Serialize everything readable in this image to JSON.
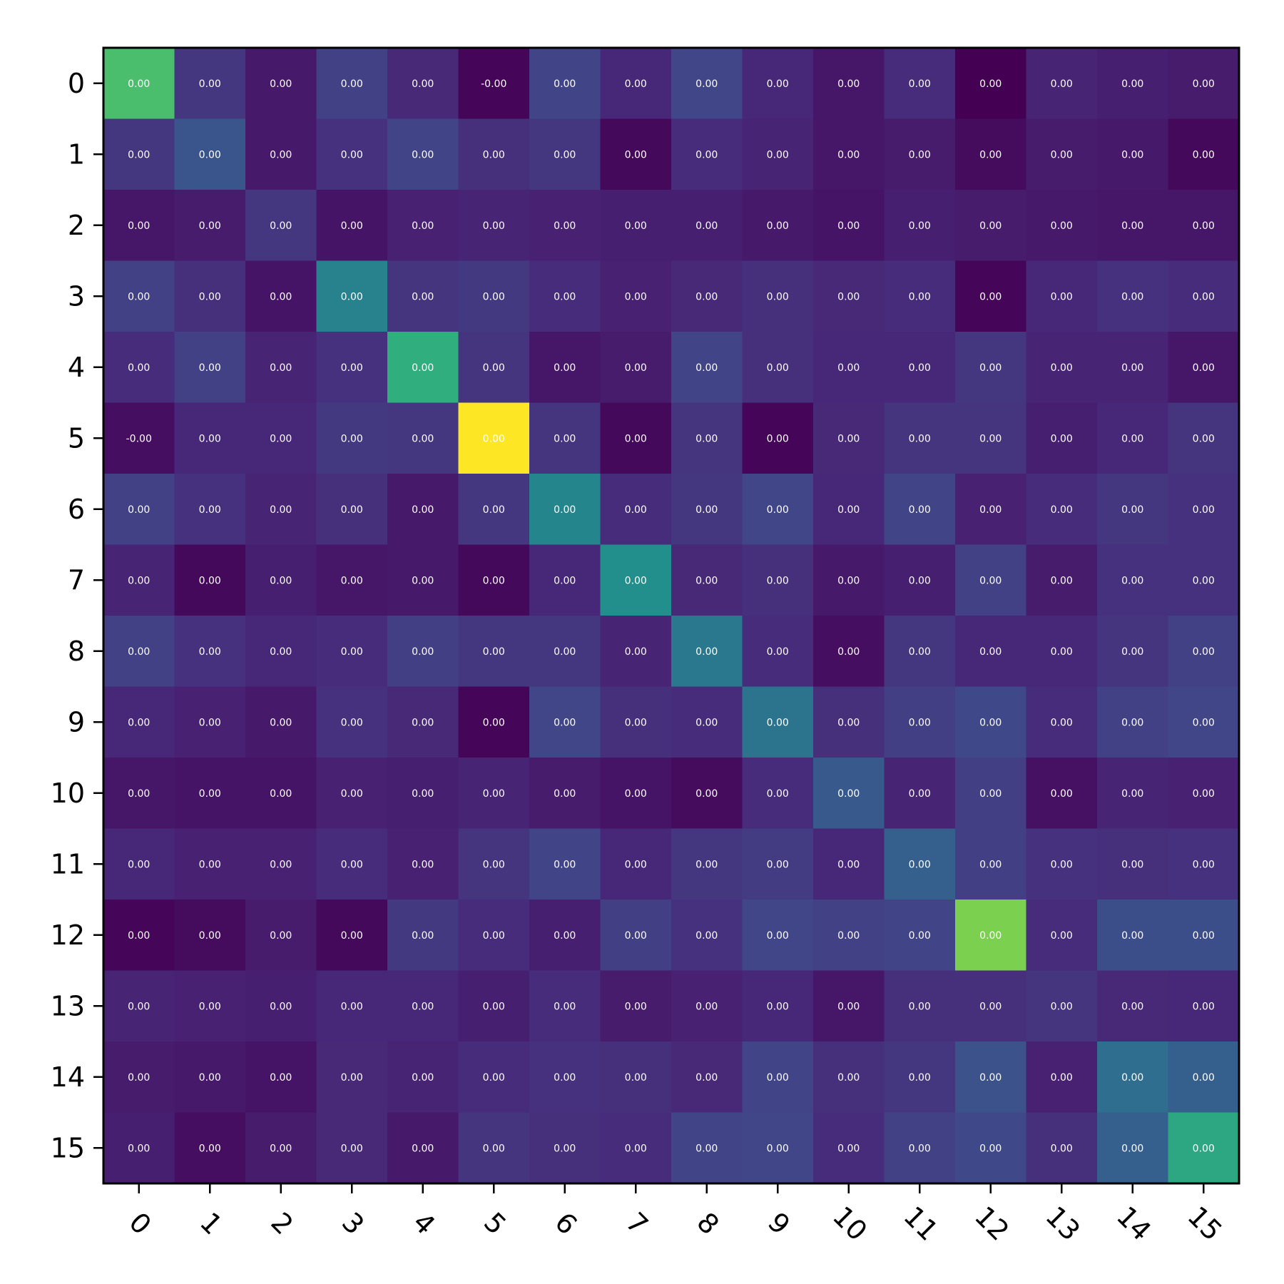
{
  "chart_data": {
    "type": "heatmap",
    "title": "",
    "xlabel": "",
    "ylabel": "",
    "colormap": "viridis",
    "x_categories": [
      "0",
      "1",
      "2",
      "3",
      "4",
      "5",
      "6",
      "7",
      "8",
      "9",
      "10",
      "11",
      "12",
      "13",
      "14",
      "15"
    ],
    "y_categories": [
      "0",
      "1",
      "2",
      "3",
      "4",
      "5",
      "6",
      "7",
      "8",
      "9",
      "10",
      "11",
      "12",
      "13",
      "14",
      "15"
    ],
    "x_tick_rotation_deg": 45,
    "grid": false,
    "legend": "none",
    "value_range": [
      0.0,
      1.0
    ],
    "intensity": [
      [
        0.78,
        0.2,
        0.09,
        0.24,
        0.15,
        0.02,
        0.25,
        0.14,
        0.26,
        0.14,
        0.08,
        0.16,
        0.0,
        0.13,
        0.11,
        0.1
      ],
      [
        0.2,
        0.33,
        0.09,
        0.18,
        0.25,
        0.17,
        0.2,
        0.03,
        0.16,
        0.13,
        0.08,
        0.1,
        0.04,
        0.1,
        0.09,
        0.03
      ],
      [
        0.08,
        0.1,
        0.2,
        0.07,
        0.12,
        0.13,
        0.12,
        0.11,
        0.11,
        0.09,
        0.07,
        0.11,
        0.1,
        0.09,
        0.08,
        0.08
      ],
      [
        0.24,
        0.17,
        0.07,
        0.55,
        0.19,
        0.21,
        0.16,
        0.12,
        0.15,
        0.17,
        0.15,
        0.16,
        0.02,
        0.14,
        0.18,
        0.16
      ],
      [
        0.16,
        0.24,
        0.13,
        0.18,
        0.72,
        0.19,
        0.08,
        0.1,
        0.25,
        0.17,
        0.14,
        0.14,
        0.2,
        0.13,
        0.13,
        0.08
      ],
      [
        0.05,
        0.14,
        0.14,
        0.21,
        0.2,
        1.0,
        0.19,
        0.03,
        0.19,
        0.02,
        0.15,
        0.19,
        0.19,
        0.11,
        0.14,
        0.19
      ],
      [
        0.24,
        0.18,
        0.13,
        0.17,
        0.09,
        0.2,
        0.57,
        0.16,
        0.2,
        0.26,
        0.14,
        0.25,
        0.12,
        0.16,
        0.2,
        0.18
      ],
      [
        0.13,
        0.03,
        0.11,
        0.08,
        0.09,
        0.03,
        0.14,
        0.62,
        0.15,
        0.17,
        0.09,
        0.11,
        0.24,
        0.1,
        0.18,
        0.18
      ],
      [
        0.24,
        0.18,
        0.14,
        0.16,
        0.23,
        0.2,
        0.2,
        0.13,
        0.5,
        0.16,
        0.05,
        0.2,
        0.14,
        0.14,
        0.19,
        0.24
      ],
      [
        0.14,
        0.12,
        0.09,
        0.18,
        0.15,
        0.02,
        0.26,
        0.17,
        0.16,
        0.48,
        0.17,
        0.23,
        0.27,
        0.16,
        0.24,
        0.26
      ],
      [
        0.08,
        0.07,
        0.07,
        0.12,
        0.11,
        0.13,
        0.1,
        0.07,
        0.04,
        0.16,
        0.35,
        0.13,
        0.23,
        0.06,
        0.13,
        0.12
      ],
      [
        0.14,
        0.12,
        0.12,
        0.16,
        0.12,
        0.19,
        0.25,
        0.14,
        0.2,
        0.22,
        0.14,
        0.38,
        0.23,
        0.18,
        0.17,
        0.18
      ],
      [
        0.02,
        0.04,
        0.1,
        0.03,
        0.21,
        0.16,
        0.11,
        0.23,
        0.18,
        0.26,
        0.24,
        0.25,
        0.85,
        0.16,
        0.3,
        0.3
      ],
      [
        0.13,
        0.12,
        0.11,
        0.14,
        0.14,
        0.11,
        0.16,
        0.1,
        0.12,
        0.14,
        0.08,
        0.17,
        0.17,
        0.19,
        0.15,
        0.14
      ],
      [
        0.1,
        0.09,
        0.07,
        0.15,
        0.13,
        0.16,
        0.18,
        0.17,
        0.15,
        0.25,
        0.17,
        0.2,
        0.32,
        0.12,
        0.45,
        0.38
      ],
      [
        0.11,
        0.05,
        0.1,
        0.15,
        0.09,
        0.19,
        0.17,
        0.16,
        0.25,
        0.26,
        0.16,
        0.24,
        0.27,
        0.17,
        0.38,
        0.7
      ]
    ],
    "cell_labels": [
      [
        "0.00",
        "0.00",
        "0.00",
        "0.00",
        "0.00",
        "-0.00",
        "0.00",
        "0.00",
        "0.00",
        "0.00",
        "0.00",
        "0.00",
        "0.00",
        "0.00",
        "0.00",
        "0.00"
      ],
      [
        "0.00",
        "0.00",
        "0.00",
        "0.00",
        "0.00",
        "0.00",
        "0.00",
        "0.00",
        "0.00",
        "0.00",
        "0.00",
        "0.00",
        "0.00",
        "0.00",
        "0.00",
        "0.00"
      ],
      [
        "0.00",
        "0.00",
        "0.00",
        "0.00",
        "0.00",
        "0.00",
        "0.00",
        "0.00",
        "0.00",
        "0.00",
        "0.00",
        "0.00",
        "0.00",
        "0.00",
        "0.00",
        "0.00"
      ],
      [
        "0.00",
        "0.00",
        "0.00",
        "0.00",
        "0.00",
        "0.00",
        "0.00",
        "0.00",
        "0.00",
        "0.00",
        "0.00",
        "0.00",
        "0.00",
        "0.00",
        "0.00",
        "0.00"
      ],
      [
        "0.00",
        "0.00",
        "0.00",
        "0.00",
        "0.00",
        "0.00",
        "0.00",
        "0.00",
        "0.00",
        "0.00",
        "0.00",
        "0.00",
        "0.00",
        "0.00",
        "0.00",
        "0.00"
      ],
      [
        "-0.00",
        "0.00",
        "0.00",
        "0.00",
        "0.00",
        "0.00",
        "0.00",
        "0.00",
        "0.00",
        "0.00",
        "0.00",
        "0.00",
        "0.00",
        "0.00",
        "0.00",
        "0.00"
      ],
      [
        "0.00",
        "0.00",
        "0.00",
        "0.00",
        "0.00",
        "0.00",
        "0.00",
        "0.00",
        "0.00",
        "0.00",
        "0.00",
        "0.00",
        "0.00",
        "0.00",
        "0.00",
        "0.00"
      ],
      [
        "0.00",
        "0.00",
        "0.00",
        "0.00",
        "0.00",
        "0.00",
        "0.00",
        "0.00",
        "0.00",
        "0.00",
        "0.00",
        "0.00",
        "0.00",
        "0.00",
        "0.00",
        "0.00"
      ],
      [
        "0.00",
        "0.00",
        "0.00",
        "0.00",
        "0.00",
        "0.00",
        "0.00",
        "0.00",
        "0.00",
        "0.00",
        "0.00",
        "0.00",
        "0.00",
        "0.00",
        "0.00",
        "0.00"
      ],
      [
        "0.00",
        "0.00",
        "0.00",
        "0.00",
        "0.00",
        "0.00",
        "0.00",
        "0.00",
        "0.00",
        "0.00",
        "0.00",
        "0.00",
        "0.00",
        "0.00",
        "0.00",
        "0.00"
      ],
      [
        "0.00",
        "0.00",
        "0.00",
        "0.00",
        "0.00",
        "0.00",
        "0.00",
        "0.00",
        "0.00",
        "0.00",
        "0.00",
        "0.00",
        "0.00",
        "0.00",
        "0.00",
        "0.00"
      ],
      [
        "0.00",
        "0.00",
        "0.00",
        "0.00",
        "0.00",
        "0.00",
        "0.00",
        "0.00",
        "0.00",
        "0.00",
        "0.00",
        "0.00",
        "0.00",
        "0.00",
        "0.00",
        "0.00"
      ],
      [
        "0.00",
        "0.00",
        "0.00",
        "0.00",
        "0.00",
        "0.00",
        "0.00",
        "0.00",
        "0.00",
        "0.00",
        "0.00",
        "0.00",
        "0.00",
        "0.00",
        "0.00",
        "0.00"
      ],
      [
        "0.00",
        "0.00",
        "0.00",
        "0.00",
        "0.00",
        "0.00",
        "0.00",
        "0.00",
        "0.00",
        "0.00",
        "0.00",
        "0.00",
        "0.00",
        "0.00",
        "0.00",
        "0.00"
      ],
      [
        "0.00",
        "0.00",
        "0.00",
        "0.00",
        "0.00",
        "0.00",
        "0.00",
        "0.00",
        "0.00",
        "0.00",
        "0.00",
        "0.00",
        "0.00",
        "0.00",
        "0.00",
        "0.00"
      ],
      [
        "0.00",
        "0.00",
        "0.00",
        "0.00",
        "0.00",
        "0.00",
        "0.00",
        "0.00",
        "0.00",
        "0.00",
        "0.00",
        "0.00",
        "0.00",
        "0.00",
        "0.00",
        "0.00"
      ]
    ]
  }
}
